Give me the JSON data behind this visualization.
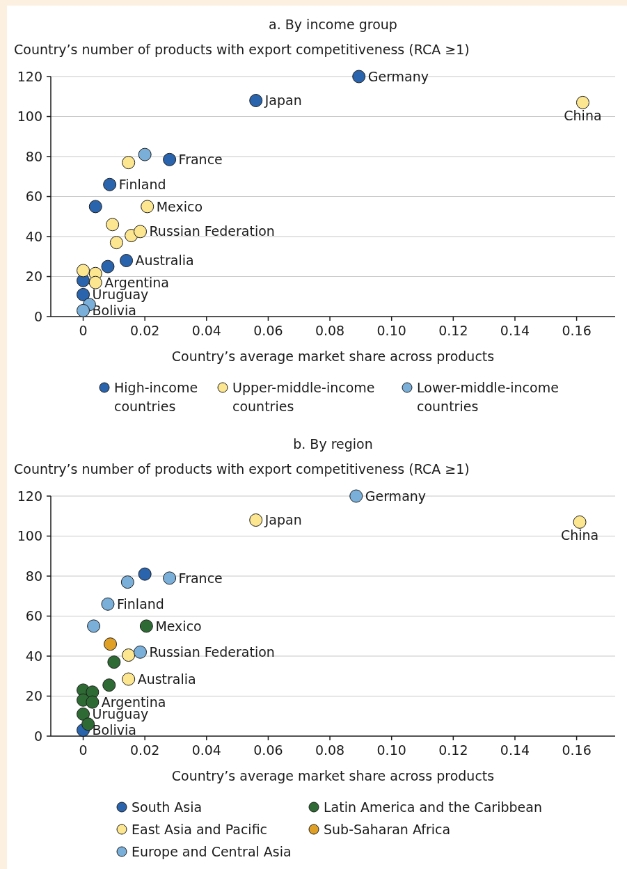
{
  "chart_data": [
    {
      "type": "scatter",
      "title": "a. By income group",
      "ylabel": "Country’s number of products with export competitiveness (RCA ≥1)",
      "xlabel": "Country’s average market share across products",
      "xlim": [
        -0.0105,
        0.1725
      ],
      "xticks": [
        0,
        0.02,
        0.04,
        0.06,
        0.08,
        {
          "value": 0.1,
          "label": "0.10"
        },
        0.12,
        0.14,
        0.16
      ],
      "ylim": [
        0,
        120
      ],
      "yticks": [
        0,
        20,
        40,
        60,
        80,
        100,
        120
      ],
      "grid": "y",
      "marker": "circle",
      "legend": "bottom",
      "series": [
        {
          "name": "High-income countries",
          "color": "#2a64ad",
          "x": [
            0.0894,
            0.056,
            0.028,
            0.0086,
            0.004,
            0.008,
            0.014,
            0,
            0
          ],
          "values": [
            120,
            108,
            78.5,
            66,
            55,
            25,
            28,
            18,
            11
          ]
        },
        {
          "name": "Upper-middle-income countries",
          "color": "#fde690",
          "x": [
            0.162,
            0.0147,
            0.0208,
            0.0095,
            0.0156,
            0.0185,
            0.0108,
            0,
            0.004,
            0.004
          ],
          "values": [
            107,
            77,
            55,
            46,
            40.5,
            42.5,
            37,
            23,
            21.5,
            17
          ]
        },
        {
          "name": "Lower-middle-income countries",
          "color": "#7aafd9",
          "x": [
            0.02,
            0.002,
            0
          ],
          "values": [
            81,
            6,
            3
          ]
        }
      ],
      "annotations": [
        {
          "text": "Germany",
          "x": 0.0894,
          "y": 120
        },
        {
          "text": "Japan",
          "x": 0.056,
          "y": 108
        },
        {
          "text": "China",
          "x": 0.162,
          "y": 107
        },
        {
          "text": "France",
          "x": 0.028,
          "y": 78.5
        },
        {
          "text": "Finland",
          "x": 0.0086,
          "y": 66
        },
        {
          "text": "Mexico",
          "x": 0.0208,
          "y": 55
        },
        {
          "text": "Russian Federation",
          "x": 0.0185,
          "y": 42.5
        },
        {
          "text": "Australia",
          "x": 0.014,
          "y": 28
        },
        {
          "text": "Argentina",
          "x": 0.004,
          "y": 17
        },
        {
          "text": "Uruguay",
          "x": 0,
          "y": 11
        },
        {
          "text": "Bolivia",
          "x": 0,
          "y": 3
        }
      ]
    },
    {
      "type": "scatter",
      "title": "b. By region",
      "ylabel": "Country’s number of products with export competitiveness (RCA ≥1)",
      "xlabel": "Country’s average market share across products",
      "xlim": [
        -0.0105,
        0.1725
      ],
      "xticks": [
        0,
        0.02,
        0.04,
        0.06,
        0.08,
        {
          "value": 0.1,
          "label": "0.10"
        },
        0.12,
        0.14,
        0.16
      ],
      "ylim": [
        0,
        120
      ],
      "yticks": [
        0,
        20,
        40,
        60,
        80,
        100,
        120
      ],
      "grid": "y",
      "marker": "circle",
      "legend": "bottom",
      "series": [
        {
          "name": "South Asia",
          "color": "#2a64ad",
          "x": [
            0.02,
            0
          ],
          "values": [
            81,
            3
          ]
        },
        {
          "name": "East Asia and Pacific",
          "color": "#fde690",
          "x": [
            0.056,
            0.161,
            0.0147,
            0.0147
          ],
          "values": [
            108,
            107,
            40.5,
            28.5
          ]
        },
        {
          "name": "Europe and Central Asia",
          "color": "#7aafd9",
          "x": [
            0.0885,
            0.028,
            0.0144,
            0.008,
            0.0034,
            0.0185
          ],
          "values": [
            120,
            79,
            77,
            66,
            55,
            42
          ]
        },
        {
          "name": "Latin America and the Caribbean",
          "color": "#2e6b34",
          "x": [
            0.0205,
            0.01,
            0.0084,
            0,
            0.003,
            0,
            0.003,
            0,
            0.0016
          ],
          "values": [
            55,
            37,
            25.5,
            23,
            22,
            18,
            17,
            11,
            6
          ]
        },
        {
          "name": "Sub-Saharan Africa",
          "color": "#e0a025",
          "x": [
            0.0088
          ],
          "values": [
            46
          ]
        }
      ],
      "annotations": [
        {
          "text": "Germany",
          "x": 0.0885,
          "y": 120
        },
        {
          "text": "Japan",
          "x": 0.056,
          "y": 108
        },
        {
          "text": "China",
          "x": 0.161,
          "y": 107
        },
        {
          "text": "France",
          "x": 0.028,
          "y": 79
        },
        {
          "text": "Finland",
          "x": 0.008,
          "y": 66
        },
        {
          "text": "Mexico",
          "x": 0.0205,
          "y": 55
        },
        {
          "text": "Russian Federation",
          "x": 0.0185,
          "y": 42
        },
        {
          "text": "Australia",
          "x": 0.0147,
          "y": 28.5
        },
        {
          "text": "Argentina",
          "x": 0.003,
          "y": 17
        },
        {
          "text": "Uruguay",
          "x": 0,
          "y": 11
        },
        {
          "text": "Bolivia",
          "x": 0,
          "y": 3
        }
      ]
    }
  ]
}
